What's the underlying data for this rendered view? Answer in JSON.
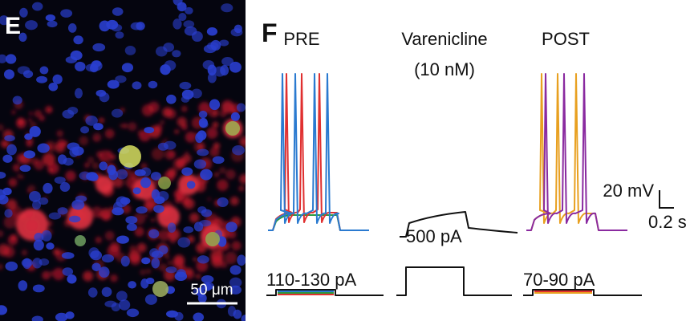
{
  "panel_e": {
    "label": "E",
    "scale_bar": "50 μm"
  },
  "panel_f": {
    "label": "F",
    "conditions": [
      {
        "title": "PRE",
        "stimulus": "110-130 pA"
      },
      {
        "title": "Varenicline",
        "subtitle": "(10 nM)",
        "stimulus": "500 pA"
      },
      {
        "title": "POST",
        "stimulus": "70-90 pA"
      }
    ],
    "scale_bar": {
      "voltage": "20 mV",
      "time": "0.2 s"
    }
  }
}
